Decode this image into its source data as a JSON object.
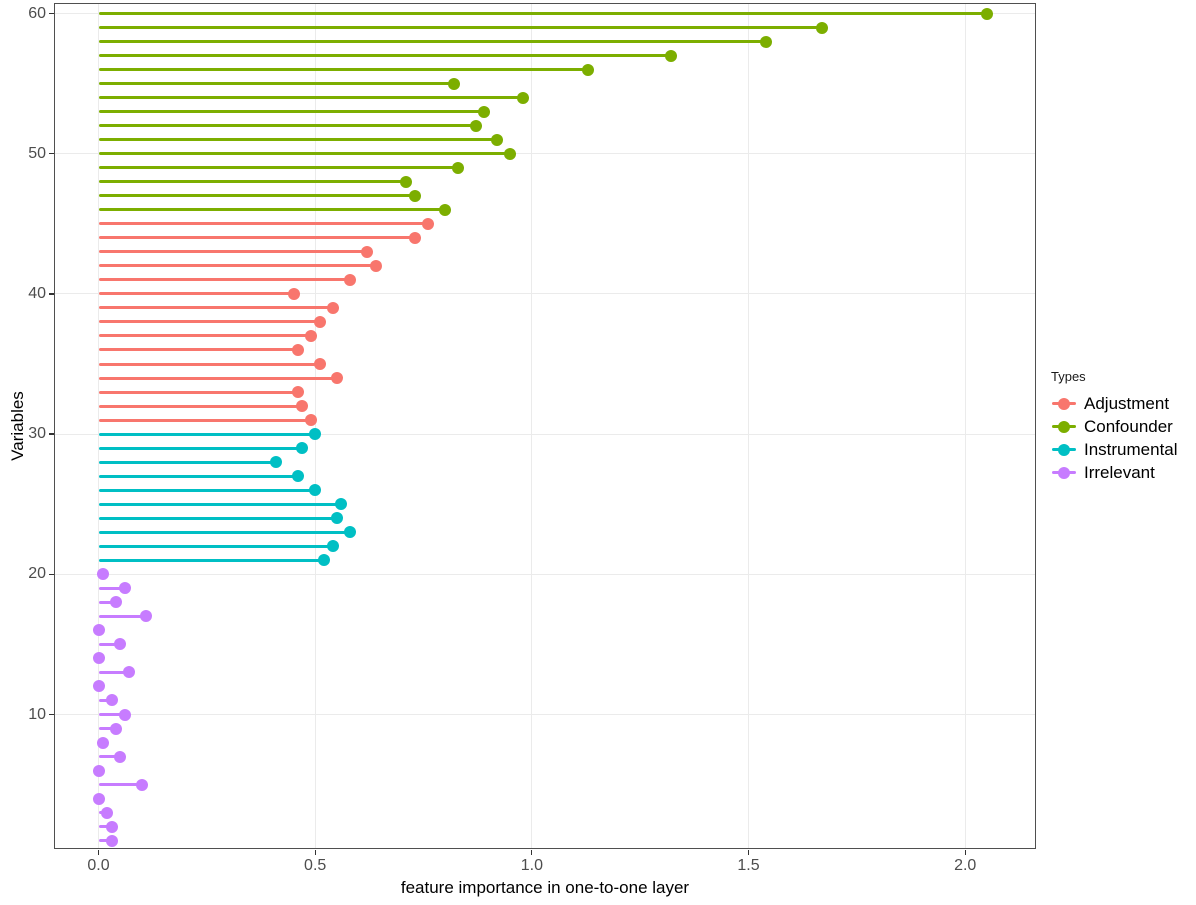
{
  "axes": {
    "x_title": "feature importance in one-to-one layer",
    "y_title": "Variables"
  },
  "legend": {
    "title": "Types"
  },
  "colors": {
    "tick_label": "#4d4d4d",
    "axis_title": "#000000",
    "gridline": "#ebebeb",
    "panel_border": "#4f4f4f",
    "adjustment": "#F8766D",
    "confounder": "#7CAE00",
    "instrumental": "#00BFC4",
    "irrelevant": "#C77CFF"
  },
  "chart_data": {
    "type": "lollipop",
    "orientation": "horizontal",
    "title": "",
    "xlabel": "feature importance in one-to-one layer",
    "ylabel": "Variables",
    "xlim": [
      -0.1,
      2.16
    ],
    "ylim": [
      0.5,
      60.7
    ],
    "grid": "major",
    "legend_position": "right",
    "x_ticks": [
      {
        "label": "0.0",
        "value": 0.0
      },
      {
        "label": "0.5",
        "value": 0.5
      },
      {
        "label": "1.0",
        "value": 1.0
      },
      {
        "label": "1.5",
        "value": 1.5
      },
      {
        "label": "2.0",
        "value": 2.0
      }
    ],
    "y_ticks": [
      {
        "label": "10",
        "value": 10
      },
      {
        "label": "20",
        "value": 20
      },
      {
        "label": "30",
        "value": 30
      },
      {
        "label": "40",
        "value": 40
      },
      {
        "label": "50",
        "value": 50
      },
      {
        "label": "60",
        "value": 60
      }
    ],
    "legend_title": "Types",
    "series": [
      {
        "name": "Adjustment",
        "color": "#F8766D",
        "points": [
          [
            31,
            0.49
          ],
          [
            32,
            0.47
          ],
          [
            33,
            0.46
          ],
          [
            34,
            0.55
          ],
          [
            35,
            0.51
          ],
          [
            36,
            0.46
          ],
          [
            37,
            0.49
          ],
          [
            38,
            0.51
          ],
          [
            39,
            0.54
          ],
          [
            40,
            0.45
          ],
          [
            41,
            0.58
          ],
          [
            42,
            0.64
          ],
          [
            43,
            0.62
          ],
          [
            44,
            0.73
          ],
          [
            45,
            0.76
          ]
        ]
      },
      {
        "name": "Confounder",
        "color": "#7CAE00",
        "points": [
          [
            46,
            0.8
          ],
          [
            47,
            0.73
          ],
          [
            48,
            0.71
          ],
          [
            49,
            0.83
          ],
          [
            50,
            0.95
          ],
          [
            51,
            0.92
          ],
          [
            52,
            0.87
          ],
          [
            53,
            0.89
          ],
          [
            54,
            0.98
          ],
          [
            55,
            0.82
          ],
          [
            56,
            1.13
          ],
          [
            57,
            1.32
          ],
          [
            58,
            1.54
          ],
          [
            59,
            1.67
          ],
          [
            60,
            2.05
          ]
        ]
      },
      {
        "name": "Instrumental",
        "color": "#00BFC4",
        "points": [
          [
            21,
            0.52
          ],
          [
            22,
            0.54
          ],
          [
            23,
            0.58
          ],
          [
            24,
            0.55
          ],
          [
            25,
            0.56
          ],
          [
            26,
            0.5
          ],
          [
            27,
            0.46
          ],
          [
            28,
            0.41
          ],
          [
            29,
            0.47
          ],
          [
            30,
            0.5
          ]
        ]
      },
      {
        "name": "Irrelevant",
        "color": "#C77CFF",
        "points": [
          [
            1,
            0.03
          ],
          [
            2,
            0.03
          ],
          [
            3,
            0.02
          ],
          [
            4,
            0.0
          ],
          [
            5,
            0.1
          ],
          [
            6,
            0.0
          ],
          [
            7,
            0.05
          ],
          [
            8,
            0.01
          ],
          [
            9,
            0.04
          ],
          [
            10,
            0.06
          ],
          [
            11,
            0.03
          ],
          [
            12,
            0.0
          ],
          [
            13,
            0.07
          ],
          [
            14,
            0.0
          ],
          [
            15,
            0.05
          ],
          [
            16,
            0.0
          ],
          [
            17,
            0.11
          ],
          [
            18,
            0.04
          ],
          [
            19,
            0.06
          ],
          [
            20,
            0.01
          ]
        ]
      }
    ]
  }
}
